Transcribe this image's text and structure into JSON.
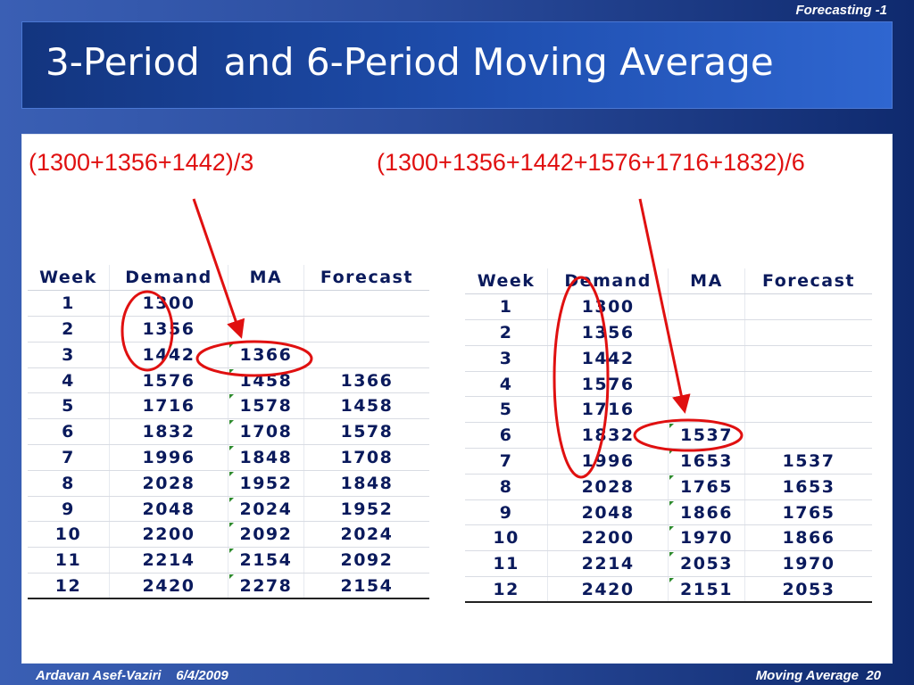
{
  "header": {
    "top_label": "Forecasting -1"
  },
  "slide": {
    "title": "3-Period  and 6-Period Moving Average",
    "formula_left": "(1300+1356+1442)/3",
    "formula_right": "(1300+1356+1442+1576+1716+1832)/6"
  },
  "table_3": {
    "columns": [
      "Week",
      "Demand",
      "MA",
      "Forecast"
    ],
    "rows": [
      [
        "1",
        "1300",
        "",
        ""
      ],
      [
        "2",
        "1356",
        "",
        ""
      ],
      [
        "3",
        "1442",
        "1366",
        ""
      ],
      [
        "4",
        "1576",
        "1458",
        "1366"
      ],
      [
        "5",
        "1716",
        "1578",
        "1458"
      ],
      [
        "6",
        "1832",
        "1708",
        "1578"
      ],
      [
        "7",
        "1996",
        "1848",
        "1708"
      ],
      [
        "8",
        "2028",
        "1952",
        "1848"
      ],
      [
        "9",
        "2048",
        "2024",
        "1952"
      ],
      [
        "10",
        "2200",
        "2092",
        "2024"
      ],
      [
        "11",
        "2214",
        "2154",
        "2092"
      ],
      [
        "12",
        "2420",
        "2278",
        "2154"
      ]
    ]
  },
  "table_6": {
    "columns": [
      "Week",
      "Demand",
      "MA",
      "Forecast"
    ],
    "rows": [
      [
        "1",
        "1300",
        "",
        ""
      ],
      [
        "2",
        "1356",
        "",
        ""
      ],
      [
        "3",
        "1442",
        "",
        ""
      ],
      [
        "4",
        "1576",
        "",
        ""
      ],
      [
        "5",
        "1716",
        "",
        ""
      ],
      [
        "6",
        "1832",
        "1537",
        ""
      ],
      [
        "7",
        "1996",
        "1653",
        "1537"
      ],
      [
        "8",
        "2028",
        "1765",
        "1653"
      ],
      [
        "9",
        "2048",
        "1866",
        "1765"
      ],
      [
        "10",
        "2200",
        "1970",
        "1866"
      ],
      [
        "11",
        "2214",
        "2053",
        "1970"
      ],
      [
        "12",
        "2420",
        "2151",
        "2053"
      ]
    ]
  },
  "footer": {
    "author": "Ardavan Asef-Vaziri",
    "date": "6/4/2009",
    "section": "Moving Average",
    "page": "20"
  },
  "colors": {
    "accent_red": "#e01010",
    "table_text": "#0a1a5c",
    "title_bar": "#1f4fb0",
    "background": "#2a4c9e"
  }
}
